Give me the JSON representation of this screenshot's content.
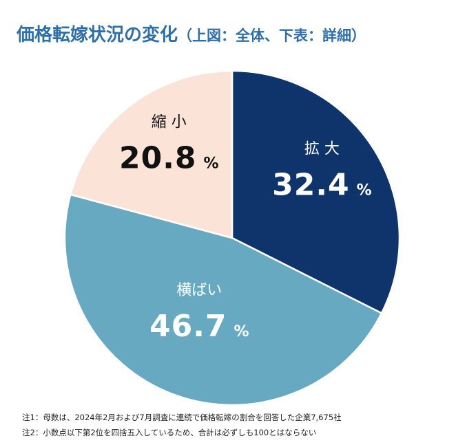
{
  "title": {
    "main": "価格転嫁状況の変化",
    "sub": "（上図：全体、下表：詳細）"
  },
  "chart_data": {
    "type": "pie",
    "title": "価格転嫁状況の変化",
    "slices": [
      {
        "label": "拡 大",
        "value": 32.4,
        "display": "32.4",
        "unit": "%",
        "color": "#0f346b",
        "text_color": "#ffffff"
      },
      {
        "label": "横ばい",
        "value": 46.7,
        "display": "46.7",
        "unit": "%",
        "color": "#68a9c2",
        "text_color": "#ffffff"
      },
      {
        "label": "縮 小",
        "value": 20.8,
        "display": "20.8",
        "unit": "%",
        "color": "#fbe4d7",
        "text_color": "#111111"
      }
    ],
    "start": "12 o'clock",
    "direction": "clockwise"
  },
  "notes": [
    "注1：母数は、2024年2月および7月調査に連続で価格転嫁の割合を回答した企業7,675社",
    "注2：小数点以下第2位を四捨五入しているため、合計は必ずしも100とはならない"
  ]
}
